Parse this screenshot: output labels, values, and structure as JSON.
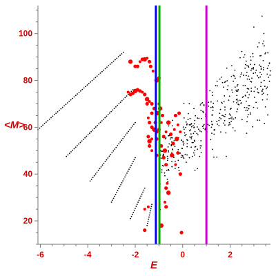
{
  "chart_data": {
    "type": "scatter",
    "title": "",
    "xlabel": "E",
    "ylabel": "<M>",
    "xlim": [
      -6.1,
      3.7
    ],
    "ylim": [
      10,
      112
    ],
    "grid": false,
    "legend": "none",
    "x_ticks": [
      -6,
      -4,
      -2,
      0,
      2
    ],
    "y_ticks": [
      20,
      40,
      60,
      80,
      100
    ],
    "x_tick_labels": [
      "-6",
      "-4",
      "-2",
      "0",
      "2"
    ],
    "y_tick_labels": [
      "20",
      "40",
      "60",
      "80",
      "100"
    ],
    "series": [
      {
        "color": "#000000",
        "marker": "dot",
        "description_segments": [
          {
            "from": [
              -6.1,
              59
            ],
            "to": [
              -2.5,
              92
            ]
          },
          {
            "from": [
              -4.9,
              47.5
            ],
            "to": [
              -2.1,
              76
            ]
          },
          {
            "from": [
              -3.9,
              37
            ],
            "to": [
              -2.0,
              62
            ]
          },
          {
            "from": [
              -3.0,
              28
            ],
            "to": [
              -2.0,
              47
            ]
          },
          {
            "from": [
              -2.2,
              21
            ],
            "to": [
              -1.6,
              34
            ]
          },
          {
            "from": [
              -1.5,
              18
            ],
            "to": [
              -1.3,
              27
            ]
          }
        ],
        "cloud": {
          "x_range": [
            -1.0,
            3.7
          ],
          "center_line": [
            [
              -1.0,
              44
            ],
            [
              3.7,
              86
            ]
          ],
          "spread": 8,
          "count": 420
        }
      },
      {
        "color": "#ff0000",
        "marker": "dot",
        "description": "larger red points concentrated near E between -2.6 and -0.6",
        "points": [
          [
            -2.2,
            88
          ],
          [
            -2.0,
            86
          ],
          [
            -1.9,
            86
          ],
          [
            -1.8,
            88
          ],
          [
            -1.7,
            89
          ],
          [
            -1.6,
            89
          ],
          [
            -1.5,
            89.5
          ],
          [
            -1.4,
            88
          ],
          [
            -1.35,
            86
          ],
          [
            -1.25,
            84
          ],
          [
            -1.1,
            80
          ],
          [
            -1.0,
            81
          ],
          [
            -2.3,
            75
          ],
          [
            -2.2,
            74
          ],
          [
            -2.1,
            74.5
          ],
          [
            -2.0,
            75.5
          ],
          [
            -1.9,
            76
          ],
          [
            -1.8,
            75.5
          ],
          [
            -1.7,
            75
          ],
          [
            -1.6,
            74
          ],
          [
            -1.5,
            72
          ],
          [
            -1.4,
            71
          ],
          [
            -1.3,
            70
          ],
          [
            -1.2,
            68
          ],
          [
            -1.0,
            70
          ],
          [
            -0.95,
            68
          ],
          [
            -1.5,
            70
          ],
          [
            -1.45,
            64
          ],
          [
            -1.4,
            62
          ],
          [
            -1.3,
            60
          ],
          [
            -1.2,
            59
          ],
          [
            -1.1,
            58
          ],
          [
            -1.0,
            59
          ],
          [
            -0.9,
            62
          ],
          [
            -1.45,
            56
          ],
          [
            -1.4,
            54
          ],
          [
            -1.3,
            55
          ],
          [
            -1.1,
            55
          ],
          [
            -0.8,
            56
          ],
          [
            -0.7,
            58
          ],
          [
            -0.6,
            62
          ],
          [
            -1.4,
            52
          ],
          [
            -1.3,
            50
          ],
          [
            -1.1,
            48
          ],
          [
            -0.9,
            52
          ],
          [
            -0.75,
            50
          ],
          [
            -0.8,
            47
          ],
          [
            -0.7,
            44
          ],
          [
            -0.65,
            36
          ],
          [
            -0.7,
            34
          ],
          [
            -0.6,
            32
          ],
          [
            -0.75,
            28
          ],
          [
            -0.7,
            26
          ],
          [
            -1.6,
            16
          ],
          [
            -1.45,
            26
          ],
          [
            -0.9,
            18
          ],
          [
            -0.05,
            15
          ],
          [
            -1.6,
            25
          ],
          [
            -1.3,
            66
          ],
          [
            -1.15,
            62
          ],
          [
            -1.05,
            66
          ],
          [
            -0.85,
            65
          ],
          [
            -0.3,
            65
          ],
          [
            -0.2,
            61
          ],
          [
            -0.15,
            66
          ],
          [
            -0.25,
            55
          ],
          [
            -0.1,
            58
          ],
          [
            -0.5,
            57
          ],
          [
            -0.4,
            53
          ],
          [
            -0.35,
            59
          ],
          [
            -0.45,
            48
          ],
          [
            -0.2,
            49
          ],
          [
            -0.3,
            44
          ],
          [
            -0.1,
            40
          ]
        ]
      }
    ],
    "vertical_lines": [
      {
        "x": -1.13,
        "color": "#0000ff"
      },
      {
        "x": -0.98,
        "color": "#00aa00"
      },
      {
        "x": 1.0,
        "color": "#cc00cc"
      }
    ]
  }
}
